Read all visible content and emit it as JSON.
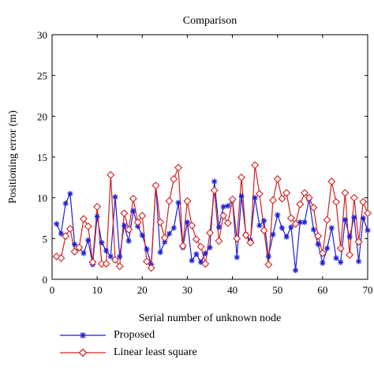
{
  "chart_data": {
    "type": "line",
    "title": "Comparison",
    "xlabel": "Serial number of unknown node",
    "ylabel": "Positioning error (m)",
    "xlim": [
      0,
      70
    ],
    "ylim": [
      0,
      30
    ],
    "xticks": [
      0,
      10,
      20,
      30,
      40,
      50,
      60,
      70
    ],
    "yticks": [
      0,
      5,
      10,
      15,
      20,
      25,
      30
    ],
    "grid": false,
    "legend_position": "below",
    "series": [
      {
        "name": "Proposed",
        "color": "#1f1fd0",
        "marker": "asterisk",
        "x": [
          1,
          2,
          3,
          4,
          5,
          6,
          7,
          8,
          9,
          10,
          11,
          12,
          13,
          14,
          15,
          16,
          17,
          18,
          19,
          20,
          21,
          22,
          23,
          24,
          25,
          26,
          27,
          28,
          29,
          30,
          31,
          32,
          33,
          34,
          35,
          36,
          37,
          38,
          39,
          40,
          41,
          42,
          43,
          44,
          45,
          46,
          47,
          48,
          49,
          50,
          51,
          52,
          53,
          54,
          55,
          56,
          57,
          58,
          59,
          60,
          61,
          62,
          63,
          64,
          65,
          66,
          67,
          68,
          69,
          70
        ],
        "values": [
          6.8,
          5.6,
          9.3,
          10.5,
          4.3,
          3.8,
          3.2,
          4.8,
          1.8,
          7.7,
          4.5,
          3.5,
          2.8,
          10.1,
          2.8,
          6.6,
          4.7,
          8.4,
          6.5,
          5.4,
          3.7,
          1.8,
          11.5,
          3.3,
          4.6,
          5.6,
          6.3,
          9.4,
          3.9,
          7.0,
          2.3,
          3.1,
          2.1,
          3.2,
          3.9,
          12.0,
          6.4,
          8.9,
          9.0,
          9.7,
          2.7,
          10.2,
          5.5,
          4.8,
          10.0,
          6.6,
          7.2,
          2.8,
          5.5,
          7.9,
          6.3,
          5.2,
          6.4,
          1.1,
          7.0,
          7.0,
          9.8,
          6.1,
          4.3,
          2.0,
          3.8,
          6.3,
          2.6,
          2.1,
          7.3,
          5.2,
          7.6,
          2.2,
          7.5,
          6.0
        ]
      },
      {
        "name": "Linear least square",
        "color": "#d42020",
        "marker": "diamond",
        "x": [
          1,
          2,
          3,
          4,
          5,
          6,
          7,
          8,
          9,
          10,
          11,
          12,
          13,
          14,
          15,
          16,
          17,
          18,
          19,
          20,
          21,
          22,
          23,
          24,
          25,
          26,
          27,
          28,
          29,
          30,
          31,
          32,
          33,
          34,
          35,
          36,
          37,
          38,
          39,
          40,
          41,
          42,
          43,
          44,
          45,
          46,
          47,
          48,
          49,
          50,
          51,
          52,
          53,
          54,
          55,
          56,
          57,
          58,
          59,
          60,
          61,
          62,
          63,
          64,
          65,
          66,
          67,
          68,
          69,
          70
        ],
        "values": [
          2.8,
          2.6,
          5.3,
          6.2,
          3.4,
          3.9,
          7.4,
          6.5,
          2.1,
          8.9,
          1.9,
          1.9,
          12.8,
          2.4,
          1.6,
          8.1,
          6.1,
          9.9,
          7.0,
          7.8,
          2.2,
          1.4,
          11.5,
          7.0,
          5.1,
          9.6,
          12.3,
          13.7,
          4.1,
          9.6,
          6.6,
          4.9,
          4.0,
          1.9,
          5.7,
          10.9,
          4.7,
          7.8,
          6.9,
          9.8,
          5.0,
          12.5,
          5.4,
          4.5,
          14.0,
          10.5,
          6.0,
          1.8,
          9.7,
          12.3,
          9.9,
          10.6,
          7.5,
          6.8,
          9.2,
          10.6,
          10.0,
          8.8,
          5.3,
          3.2,
          7.3,
          12.0,
          9.5,
          3.8,
          10.6,
          3.0,
          10.0,
          4.6,
          9.5,
          8.1
        ]
      }
    ]
  }
}
